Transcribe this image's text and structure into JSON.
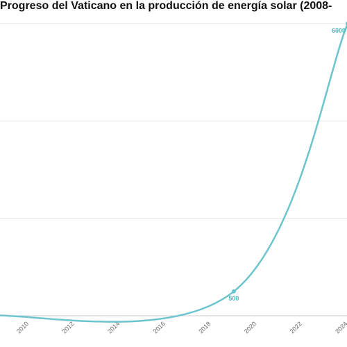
{
  "chart_data": {
    "type": "line",
    "title": "Progreso del Vaticano en la producción de energía solar (2008-",
    "xlabel": "",
    "ylabel": "",
    "x_ticks": [
      "2010",
      "2012",
      "2014",
      "2016",
      "2018",
      "2020",
      "2022",
      "2024"
    ],
    "xlim": [
      2008,
      2024
    ],
    "ylim": [
      0,
      6200
    ],
    "grid": true,
    "series": [
      {
        "color": "#6cc5cd",
        "points": [
          {
            "x": 2008,
            "y": 0
          },
          {
            "x": 2019,
            "y": 500,
            "label": "500"
          },
          {
            "x": 2024,
            "y": 6000,
            "label": "6000"
          }
        ]
      }
    ]
  }
}
